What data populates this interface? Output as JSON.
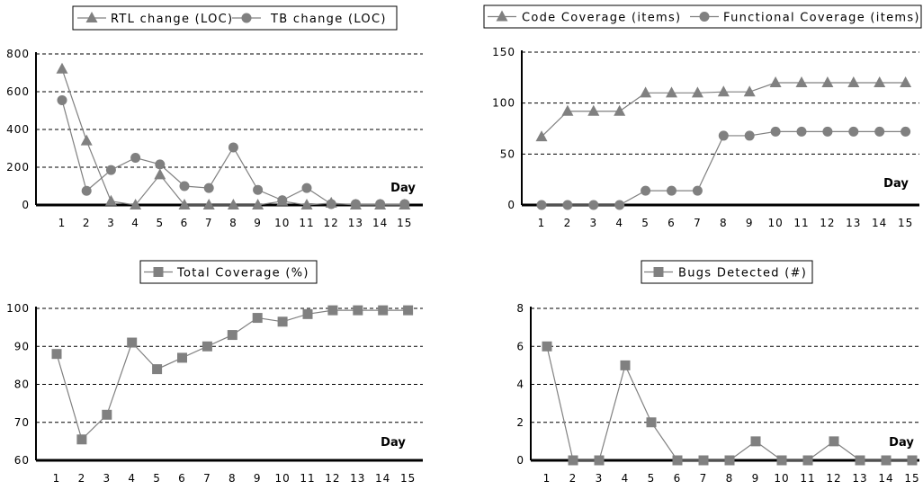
{
  "colors": {
    "series": "#808080",
    "axis": "#000000",
    "grid": "#000000"
  },
  "chart_data": [
    {
      "type": "line",
      "x": [
        1,
        2,
        3,
        4,
        5,
        6,
        7,
        8,
        9,
        10,
        11,
        12,
        13,
        14,
        15
      ],
      "xlabel": "Day",
      "ylim": [
        0,
        800
      ],
      "yticks": [
        0,
        200,
        400,
        600,
        800
      ],
      "grid": "horizontal dashed",
      "legend": "top",
      "series": [
        {
          "name": "RTL change (LOC)",
          "marker": "triangle",
          "values": [
            720,
            340,
            20,
            0,
            160,
            0,
            0,
            0,
            0,
            20,
            0,
            10,
            0,
            0,
            0
          ]
        },
        {
          "name": "TB change (LOC)",
          "marker": "circle",
          "values": [
            555,
            75,
            185,
            250,
            215,
            100,
            90,
            305,
            80,
            25,
            90,
            5,
            5,
            5,
            5
          ]
        }
      ]
    },
    {
      "type": "line",
      "x": [
        1,
        2,
        3,
        4,
        5,
        6,
        7,
        8,
        9,
        10,
        11,
        12,
        13,
        14,
        15
      ],
      "xlabel": "Day",
      "ylim": [
        0,
        150
      ],
      "yticks": [
        0,
        50,
        100,
        150
      ],
      "grid": "horizontal dashed",
      "legend": "top",
      "series": [
        {
          "name": "Code Coverage (items)",
          "marker": "triangle",
          "values": [
            67,
            92,
            92,
            92,
            110,
            110,
            110,
            111,
            111,
            120,
            120,
            120,
            120,
            120,
            120
          ]
        },
        {
          "name": "Functional Coverage (items)",
          "marker": "circle",
          "values": [
            0,
            0,
            0,
            0,
            14,
            14,
            14,
            68,
            68,
            72,
            72,
            72,
            72,
            72,
            72
          ]
        }
      ]
    },
    {
      "type": "line",
      "x": [
        1,
        2,
        3,
        4,
        5,
        6,
        7,
        8,
        9,
        10,
        11,
        12,
        13,
        14,
        15
      ],
      "xlabel": "Day",
      "ylim": [
        60,
        100
      ],
      "yticks": [
        60,
        70,
        80,
        90,
        100
      ],
      "grid": "horizontal dashed",
      "legend": "top",
      "series": [
        {
          "name": "Total Coverage (%)",
          "marker": "square",
          "values": [
            88,
            65.5,
            72,
            91,
            84,
            87,
            90,
            93,
            97.5,
            96.5,
            98.5,
            99.5,
            99.5,
            99.5,
            99.5
          ]
        }
      ]
    },
    {
      "type": "line",
      "x": [
        1,
        2,
        3,
        4,
        5,
        6,
        7,
        8,
        9,
        10,
        11,
        12,
        13,
        14,
        15
      ],
      "xlabel": "Day",
      "ylim": [
        0,
        8
      ],
      "yticks": [
        0,
        2,
        4,
        6,
        8
      ],
      "grid": "horizontal dashed",
      "legend": "top",
      "series": [
        {
          "name": "Bugs Detected (#)",
          "marker": "square",
          "values": [
            6,
            0,
            0,
            5,
            2,
            0,
            0,
            0,
            1,
            0,
            0,
            1,
            0,
            0,
            0
          ]
        }
      ]
    }
  ]
}
